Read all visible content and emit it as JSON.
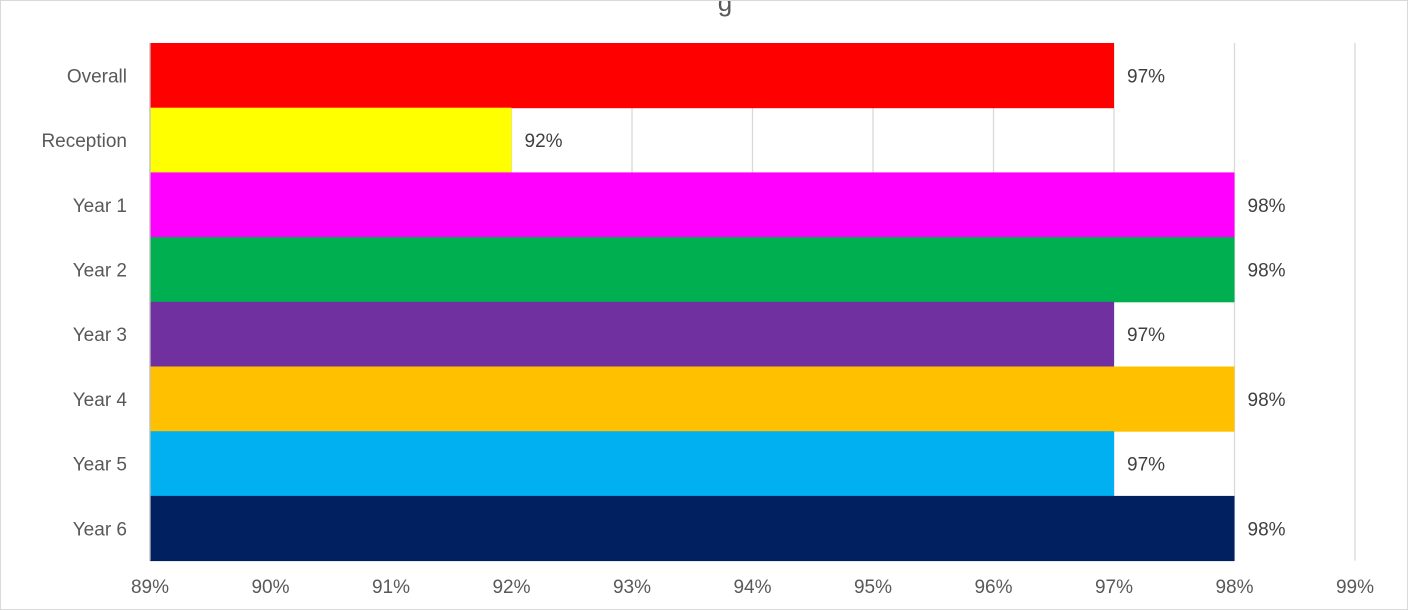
{
  "chart_data": {
    "type": "bar",
    "orientation": "horizontal",
    "title": "",
    "xlabel": "",
    "ylabel": "",
    "categories": [
      "Overall",
      "Reception",
      "Year 1",
      "Year 2",
      "Year 3",
      "Year 4",
      "Year 5",
      "Year 6"
    ],
    "values": [
      97,
      92,
      98,
      98,
      97,
      98,
      97,
      98
    ],
    "data_labels": [
      "97%",
      "92%",
      "98%",
      "98%",
      "97%",
      "98%",
      "97%",
      "98%"
    ],
    "colors": [
      "#FF0000",
      "#FFFF00",
      "#FF00FF",
      "#00B050",
      "#7030A0",
      "#FFC000",
      "#00B0F0",
      "#002060"
    ],
    "xlim": [
      89,
      99
    ],
    "x_ticks": [
      89,
      90,
      91,
      92,
      93,
      94,
      95,
      96,
      97,
      98,
      99
    ],
    "x_tick_labels": [
      "89%",
      "90%",
      "91%",
      "92%",
      "93%",
      "94%",
      "95%",
      "96%",
      "97%",
      "98%",
      "99%"
    ],
    "grid": "vertical",
    "legend": "none"
  }
}
